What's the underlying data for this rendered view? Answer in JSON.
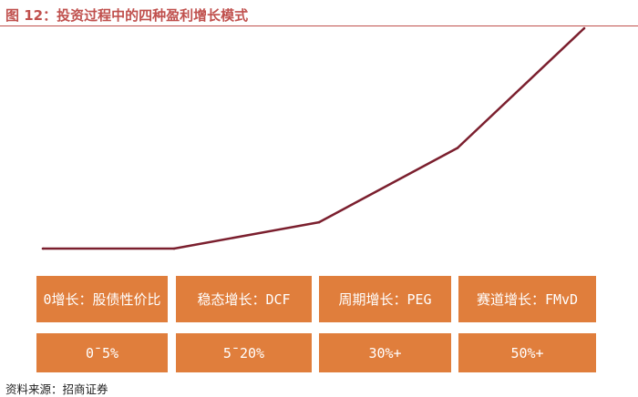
{
  "figure": {
    "title": "图 12：投资过程中的四种盈利增长模式",
    "source": "资料来源：招商证券"
  },
  "colors": {
    "line": "#7B1F2E",
    "title": "#C0504D",
    "cell": "#E07E3C",
    "cell_text": "#FFFFFF"
  },
  "chart_data": {
    "type": "line",
    "x": [
      0,
      1,
      2,
      3,
      4
    ],
    "series": [
      {
        "values": [
          0,
          0,
          1.1,
          4.2,
          9.2
        ]
      }
    ],
    "xlim": [
      0,
      4
    ],
    "ylim": [
      0,
      9.2
    ],
    "axes_visible": false,
    "grid": false,
    "table": {
      "rows": [
        [
          "0增长：股债性价比",
          "稳态增长：DCF",
          "周期增长：PEG",
          "赛道增长：FMvD"
        ],
        [
          "0¯5%",
          "5¯20%",
          "30%+",
          "50%+"
        ]
      ]
    }
  }
}
